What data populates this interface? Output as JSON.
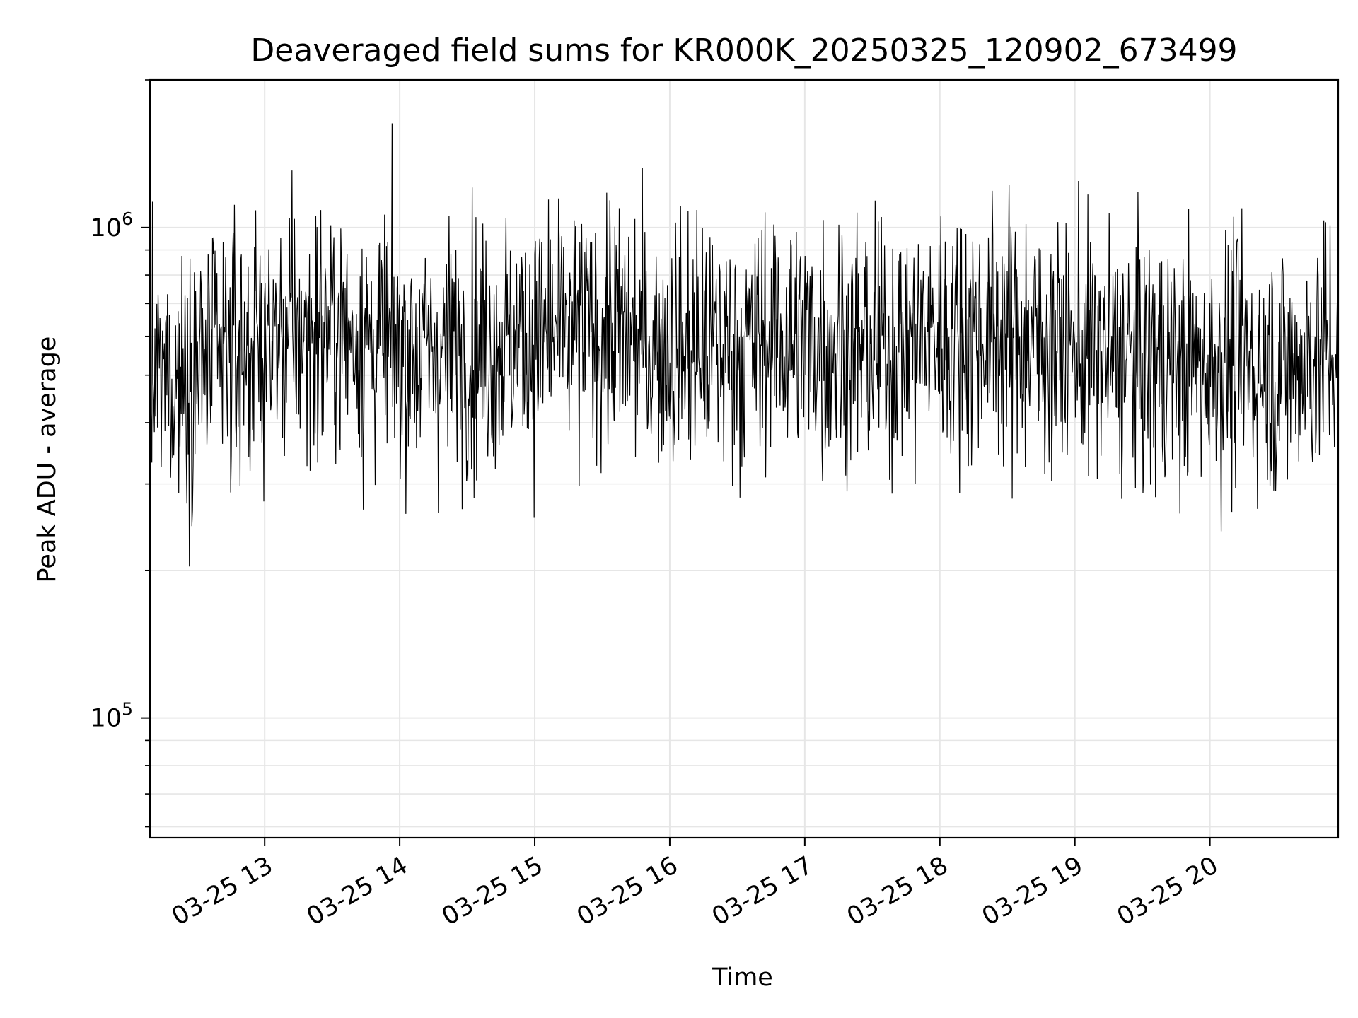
{
  "chart_data": {
    "type": "line",
    "title": "Deaveraged field sums for KR000K_20250325_120902_673499",
    "xlabel": "Time",
    "ylabel": "Peak ADU - average",
    "x_range": [
      "2025-03-25T12:09:02",
      "2025-03-25T20:57:00"
    ],
    "ylim": [
      57000,
      2000000
    ],
    "yscale": "log",
    "grid": true,
    "line_color": "#000000",
    "x_ticks": [
      {
        "value": "2025-03-25T13:00",
        "label": "03-25 13"
      },
      {
        "value": "2025-03-25T14:00",
        "label": "03-25 14"
      },
      {
        "value": "2025-03-25T15:00",
        "label": "03-25 15"
      },
      {
        "value": "2025-03-25T16:00",
        "label": "03-25 16"
      },
      {
        "value": "2025-03-25T17:00",
        "label": "03-25 17"
      },
      {
        "value": "2025-03-25T18:00",
        "label": "03-25 18"
      },
      {
        "value": "2025-03-25T19:00",
        "label": "03-25 19"
      },
      {
        "value": "2025-03-25T20:00",
        "label": "03-25 20"
      }
    ],
    "y_ticks": [
      {
        "value": 100000,
        "base": "10",
        "exp": "5"
      },
      {
        "value": 1000000,
        "base": "10",
        "exp": "6"
      }
    ],
    "series": [
      {
        "x": [
          "2025-03-25T12:09",
          "2025-03-25T12:30",
          "2025-03-25T12:50",
          "2025-03-25T13:10",
          "2025-03-25T13:30",
          "2025-03-25T13:50",
          "2025-03-25T14:10",
          "2025-03-25T14:30",
          "2025-03-25T14:50",
          "2025-03-25T15:10",
          "2025-03-25T15:30",
          "2025-03-25T15:50",
          "2025-03-25T16:10",
          "2025-03-25T16:30",
          "2025-03-25T16:50",
          "2025-03-25T17:10",
          "2025-03-25T17:30",
          "2025-03-25T17:50",
          "2025-03-25T18:10",
          "2025-03-25T18:30",
          "2025-03-25T18:50",
          "2025-03-25T19:10",
          "2025-03-25T19:30",
          "2025-03-25T19:50",
          "2025-03-25T20:10",
          "2025-03-25T20:30",
          "2025-03-25T20:50"
        ],
        "y": [
          480000,
          520000,
          560000,
          600000,
          620000,
          580000,
          560000,
          570000,
          590000,
          600000,
          620000,
          580000,
          560000,
          570000,
          600000,
          580000,
          560000,
          590000,
          620000,
          600000,
          580000,
          550000,
          530000,
          520000,
          540000,
          510000,
          560000
        ]
      }
    ]
  }
}
